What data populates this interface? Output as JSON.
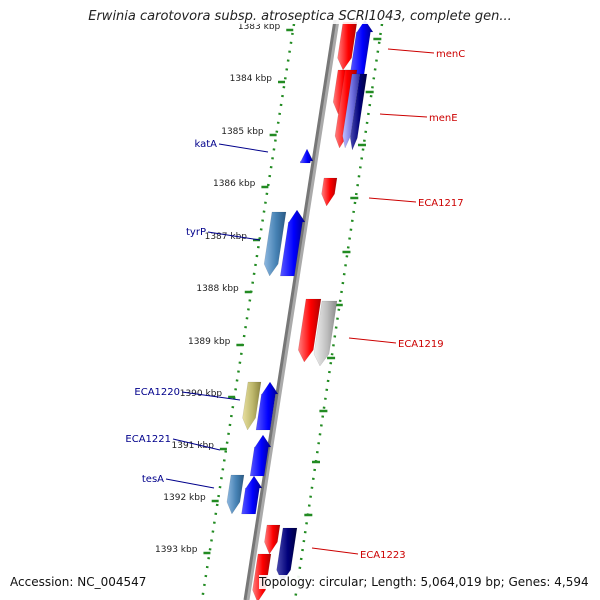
{
  "title": "Erwinia carotovora subsp. atroseptica SCRI1043, complete gen...",
  "footer": {
    "accession": "Accession: NC_004547",
    "summary": "Topology: circular; Length: 5,064,019 bp; Genes: 4,594"
  },
  "colors": {
    "forward_gene": "#0000ff",
    "reverse_gene": "#ff0000",
    "forward_label": "#00008b",
    "reverse_label": "#cc0000",
    "backbone": "#777777",
    "tick": "#228b22"
  },
  "ruler_labels": [
    "1383 kbp",
    "1384 kbp",
    "1385 kbp",
    "1386 kbp",
    "1387 kbp",
    "1388 kbp",
    "1389 kbp",
    "1390 kbp",
    "1391 kbp",
    "1392 kbp",
    "1393 kbp"
  ],
  "forward_labels": [
    "katA",
    "tyrP",
    "ECA1220",
    "ECA1221",
    "tesA"
  ],
  "reverse_labels": [
    "menC",
    "menE",
    "ECA1217",
    "ECA1219",
    "ECA1223"
  ]
}
